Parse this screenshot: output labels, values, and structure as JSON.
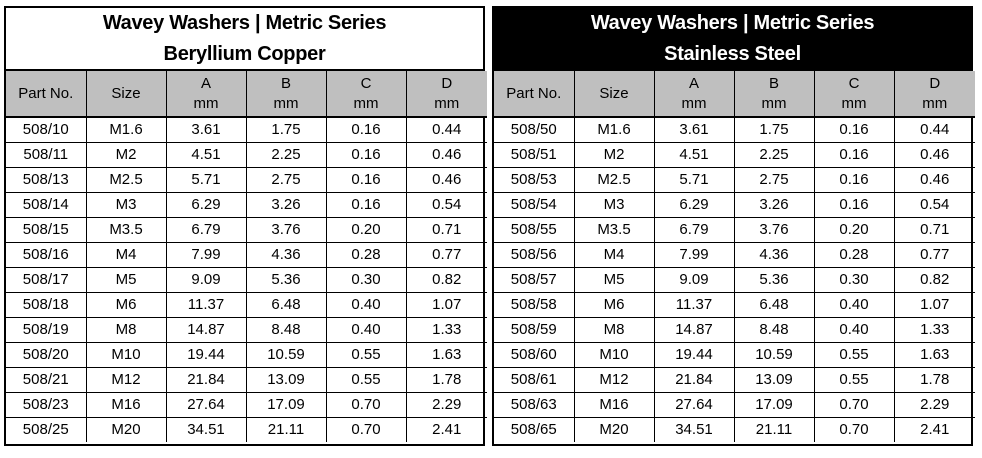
{
  "tables": [
    {
      "title_line1": "Wavey Washers | Metric Series",
      "title_line2": "Beryllium Copper",
      "headers": {
        "part": "Part No.",
        "size": "Size",
        "a": "A",
        "a_unit": "mm",
        "b": "B",
        "b_unit": "mm",
        "c": "C",
        "c_unit": "mm",
        "d": "D",
        "d_unit": "mm"
      },
      "rows": [
        [
          "508/10",
          "M1.6",
          "3.61",
          "1.75",
          "0.16",
          "0.44"
        ],
        [
          "508/11",
          "M2",
          "4.51",
          "2.25",
          "0.16",
          "0.46"
        ],
        [
          "508/13",
          "M2.5",
          "5.71",
          "2.75",
          "0.16",
          "0.46"
        ],
        [
          "508/14",
          "M3",
          "6.29",
          "3.26",
          "0.16",
          "0.54"
        ],
        [
          "508/15",
          "M3.5",
          "6.79",
          "3.76",
          "0.20",
          "0.71"
        ],
        [
          "508/16",
          "M4",
          "7.99",
          "4.36",
          "0.28",
          "0.77"
        ],
        [
          "508/17",
          "M5",
          "9.09",
          "5.36",
          "0.30",
          "0.82"
        ],
        [
          "508/18",
          "M6",
          "11.37",
          "6.48",
          "0.40",
          "1.07"
        ],
        [
          "508/19",
          "M8",
          "14.87",
          "8.48",
          "0.40",
          "1.33"
        ],
        [
          "508/20",
          "M10",
          "19.44",
          "10.59",
          "0.55",
          "1.63"
        ],
        [
          "508/21",
          "M12",
          "21.84",
          "13.09",
          "0.55",
          "1.78"
        ],
        [
          "508/23",
          "M16",
          "27.64",
          "17.09",
          "0.70",
          "2.29"
        ],
        [
          "508/25",
          "M20",
          "34.51",
          "21.11",
          "0.70",
          "2.41"
        ]
      ]
    },
    {
      "title_line1": "Wavey Washers | Metric Series",
      "title_line2": "Stainless Steel",
      "headers": {
        "part": "Part No.",
        "size": "Size",
        "a": "A",
        "a_unit": "mm",
        "b": "B",
        "b_unit": "mm",
        "c": "C",
        "c_unit": "mm",
        "d": "D",
        "d_unit": "mm"
      },
      "rows": [
        [
          "508/50",
          "M1.6",
          "3.61",
          "1.75",
          "0.16",
          "0.44"
        ],
        [
          "508/51",
          "M2",
          "4.51",
          "2.25",
          "0.16",
          "0.46"
        ],
        [
          "508/53",
          "M2.5",
          "5.71",
          "2.75",
          "0.16",
          "0.46"
        ],
        [
          "508/54",
          "M3",
          "6.29",
          "3.26",
          "0.16",
          "0.54"
        ],
        [
          "508/55",
          "M3.5",
          "6.79",
          "3.76",
          "0.20",
          "0.71"
        ],
        [
          "508/56",
          "M4",
          "7.99",
          "4.36",
          "0.28",
          "0.77"
        ],
        [
          "508/57",
          "M5",
          "9.09",
          "5.36",
          "0.30",
          "0.82"
        ],
        [
          "508/58",
          "M6",
          "11.37",
          "6.48",
          "0.40",
          "1.07"
        ],
        [
          "508/59",
          "M8",
          "14.87",
          "8.48",
          "0.40",
          "1.33"
        ],
        [
          "508/60",
          "M10",
          "19.44",
          "10.59",
          "0.55",
          "1.63"
        ],
        [
          "508/61",
          "M12",
          "21.84",
          "13.09",
          "0.55",
          "1.78"
        ],
        [
          "508/63",
          "M16",
          "27.64",
          "17.09",
          "0.70",
          "2.29"
        ],
        [
          "508/65",
          "M20",
          "34.51",
          "21.11",
          "0.70",
          "2.41"
        ]
      ]
    }
  ],
  "colors": {
    "header_row_bg": "#bfbfbf",
    "dark_title_bg": "#000000",
    "light_title_bg": "#ffffff"
  }
}
